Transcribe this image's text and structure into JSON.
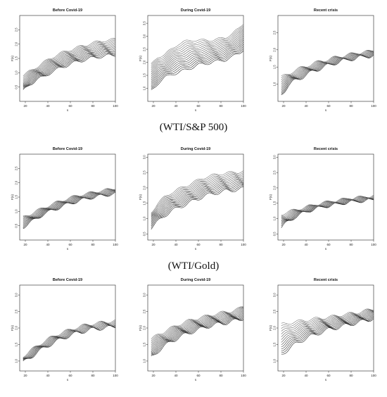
{
  "captions": [
    "(WTI/S&P 500)",
    "(WTI/Gold)"
  ],
  "chart_data": [
    {
      "type": "line",
      "title": "Before Covid-19",
      "xlabel": "s",
      "ylabel": "F(s)",
      "xlim": [
        15,
        100
      ],
      "ylim": [
        0,
        3
      ],
      "xticks": [
        20,
        40,
        60,
        80,
        100
      ],
      "yticks": [
        0.5,
        1.0,
        1.5,
        2.0,
        2.5
      ],
      "series_count": 14,
      "series": [
        {
          "name": "",
          "x": [
            18,
            24,
            30,
            36,
            42,
            48,
            54,
            60,
            66,
            72,
            78,
            84,
            90,
            96,
            100
          ],
          "lower": [
            0.35,
            0.6,
            0.75,
            0.85,
            1.0,
            1.1,
            1.22,
            1.3,
            1.38,
            1.45,
            1.5,
            1.55,
            1.58,
            1.6,
            1.62
          ],
          "upper": [
            0.9,
            1.05,
            1.2,
            1.35,
            1.5,
            1.62,
            1.72,
            1.8,
            1.88,
            1.95,
            2.02,
            2.08,
            2.12,
            2.15,
            2.18
          ]
        }
      ]
    },
    {
      "type": "line",
      "title": "During Covid-19",
      "xlabel": "s",
      "ylabel": "F(s)",
      "xlim": [
        15,
        100
      ],
      "ylim": [
        0.5,
        3.8
      ],
      "xticks": [
        20,
        40,
        60,
        80,
        100
      ],
      "yticks": [
        1.0,
        1.5,
        2.0,
        2.5,
        3.0,
        3.5
      ],
      "series_count": 16,
      "series": [
        {
          "name": "",
          "x": [
            18,
            24,
            30,
            36,
            42,
            48,
            54,
            60,
            66,
            72,
            78,
            84,
            90,
            96,
            100
          ],
          "lower": [
            0.9,
            1.2,
            1.4,
            1.55,
            1.6,
            1.7,
            1.8,
            1.9,
            1.95,
            2.0,
            2.05,
            2.1,
            2.2,
            2.35,
            2.5
          ],
          "upper": [
            1.9,
            2.2,
            2.3,
            2.5,
            2.7,
            2.8,
            2.85,
            2.85,
            2.85,
            2.85,
            2.9,
            2.95,
            3.1,
            3.3,
            3.5
          ]
        }
      ]
    },
    {
      "type": "line",
      "title": "Recent crisis",
      "xlabel": "s",
      "ylabel": "F(s)",
      "xlim": [
        15,
        100
      ],
      "ylim": [
        0.5,
        3.0
      ],
      "xticks": [
        20,
        40,
        60,
        80,
        100
      ],
      "yticks": [
        1.0,
        1.5,
        2.0,
        2.5
      ],
      "series_count": 12,
      "series": [
        {
          "name": "",
          "x": [
            18,
            24,
            30,
            36,
            42,
            48,
            54,
            60,
            66,
            72,
            78,
            84,
            90,
            96,
            100
          ],
          "lower": [
            0.7,
            0.95,
            1.1,
            1.2,
            1.3,
            1.4,
            1.48,
            1.55,
            1.62,
            1.68,
            1.72,
            1.76,
            1.8,
            1.82,
            1.85
          ],
          "upper": [
            1.2,
            1.3,
            1.4,
            1.48,
            1.55,
            1.62,
            1.68,
            1.72,
            1.78,
            1.82,
            1.86,
            1.9,
            1.93,
            1.95,
            1.97
          ]
        }
      ]
    },
    {
      "type": "line",
      "title": "Before Covid-19",
      "xlabel": "s",
      "ylabel": "F(s)",
      "xlim": [
        15,
        100
      ],
      "ylim": [
        0,
        3
      ],
      "xticks": [
        20,
        40,
        60,
        80,
        100
      ],
      "yticks": [
        0.5,
        1.0,
        1.5,
        2.0,
        2.5
      ],
      "series_count": 12,
      "series": [
        {
          "name": "",
          "x": [
            18,
            24,
            30,
            36,
            42,
            48,
            54,
            60,
            66,
            72,
            78,
            84,
            90,
            96,
            100
          ],
          "lower": [
            0.45,
            0.6,
            0.75,
            0.9,
            1.0,
            1.1,
            1.2,
            1.28,
            1.35,
            1.42,
            1.48,
            1.52,
            1.56,
            1.6,
            1.62
          ],
          "upper": [
            0.8,
            0.9,
            1.02,
            1.12,
            1.22,
            1.32,
            1.4,
            1.48,
            1.55,
            1.6,
            1.65,
            1.7,
            1.74,
            1.78,
            1.82
          ]
        }
      ]
    },
    {
      "type": "line",
      "title": "During Covid-19",
      "xlabel": "s",
      "ylabel": "F(s)",
      "xlim": [
        15,
        100
      ],
      "ylim": [
        0.3,
        3.1
      ],
      "xticks": [
        20,
        40,
        60,
        80,
        100
      ],
      "yticks": [
        0.5,
        1.0,
        1.5,
        2.0,
        2.5,
        3.0
      ],
      "series_count": 14,
      "series": [
        {
          "name": "",
          "x": [
            18,
            24,
            30,
            36,
            42,
            48,
            54,
            60,
            66,
            72,
            78,
            84,
            90,
            96,
            100
          ],
          "lower": [
            0.7,
            0.9,
            1.1,
            1.25,
            1.35,
            1.45,
            1.55,
            1.65,
            1.75,
            1.8,
            1.85,
            1.9,
            1.92,
            1.95,
            1.98
          ],
          "upper": [
            1.2,
            1.5,
            1.7,
            1.85,
            1.95,
            2.05,
            2.15,
            2.25,
            2.35,
            2.4,
            2.45,
            2.48,
            2.5,
            2.52,
            2.55
          ]
        }
      ]
    },
    {
      "type": "line",
      "title": "Recent crisis",
      "xlabel": "s",
      "ylabel": "F(s)",
      "xlim": [
        15,
        100
      ],
      "ylim": [
        0.3,
        3.1
      ],
      "xticks": [
        20,
        40,
        60,
        80,
        100
      ],
      "yticks": [
        0.5,
        1.0,
        1.5,
        2.0,
        2.5,
        3.0
      ],
      "series_count": 12,
      "series": [
        {
          "name": "",
          "x": [
            18,
            24,
            30,
            36,
            42,
            48,
            54,
            60,
            66,
            72,
            78,
            84,
            90,
            96,
            100
          ],
          "lower": [
            0.7,
            0.9,
            1.05,
            1.15,
            1.25,
            1.32,
            1.38,
            1.42,
            1.46,
            1.5,
            1.54,
            1.56,
            1.58,
            1.6,
            1.62
          ],
          "upper": [
            1.15,
            1.22,
            1.28,
            1.34,
            1.4,
            1.45,
            1.5,
            1.55,
            1.58,
            1.62,
            1.65,
            1.68,
            1.7,
            1.72,
            1.74
          ]
        }
      ]
    },
    {
      "type": "line",
      "title": "Before Covid-19",
      "xlabel": "s",
      "ylabel": "F(s)",
      "xlim": [
        15,
        100
      ],
      "ylim": [
        0.7,
        3.3
      ],
      "xticks": [
        20,
        40,
        60,
        80,
        100
      ],
      "yticks": [
        1.0,
        1.5,
        2.0,
        2.5,
        3.0
      ],
      "series_count": 10,
      "series": [
        {
          "name": "",
          "x": [
            18,
            24,
            30,
            36,
            42,
            48,
            54,
            60,
            66,
            72,
            78,
            84,
            90,
            96,
            100
          ],
          "lower": [
            0.95,
            1.1,
            1.25,
            1.38,
            1.5,
            1.6,
            1.7,
            1.78,
            1.85,
            1.9,
            1.95,
            1.98,
            2.0,
            2.02,
            2.05
          ],
          "upper": [
            1.15,
            1.3,
            1.45,
            1.58,
            1.7,
            1.8,
            1.88,
            1.95,
            2.02,
            2.08,
            2.12,
            2.15,
            2.18,
            2.2,
            2.22
          ]
        }
      ]
    },
    {
      "type": "line",
      "title": "During Covid-19",
      "xlabel": "s",
      "ylabel": "F(s)",
      "xlim": [
        15,
        100
      ],
      "ylim": [
        0.7,
        3.3
      ],
      "xticks": [
        20,
        40,
        60,
        80,
        100
      ],
      "yticks": [
        1.0,
        1.5,
        2.0,
        2.5,
        3.0
      ],
      "series_count": 14,
      "series": [
        {
          "name": "",
          "x": [
            18,
            24,
            30,
            36,
            42,
            48,
            54,
            60,
            66,
            72,
            78,
            84,
            90,
            96,
            100
          ],
          "lower": [
            1.1,
            1.3,
            1.45,
            1.6,
            1.7,
            1.8,
            1.88,
            1.95,
            2.02,
            2.08,
            2.12,
            2.15,
            2.2,
            2.25,
            2.3
          ],
          "upper": [
            1.65,
            1.8,
            1.9,
            2.0,
            2.1,
            2.18,
            2.25,
            2.3,
            2.35,
            2.4,
            2.45,
            2.48,
            2.52,
            2.58,
            2.65
          ]
        }
      ]
    },
    {
      "type": "line",
      "title": "Recent crisis",
      "xlabel": "s",
      "ylabel": "F(s)",
      "xlim": [
        15,
        100
      ],
      "ylim": [
        0.7,
        3.3
      ],
      "xticks": [
        20,
        40,
        60,
        80,
        100
      ],
      "yticks": [
        1.0,
        1.5,
        2.0,
        2.5,
        3.0
      ],
      "series_count": 14,
      "series": [
        {
          "name": "",
          "x": [
            18,
            24,
            30,
            36,
            42,
            48,
            54,
            60,
            66,
            72,
            78,
            84,
            90,
            96,
            100
          ],
          "lower": [
            1.2,
            1.35,
            1.5,
            1.62,
            1.72,
            1.8,
            1.88,
            1.95,
            2.0,
            2.05,
            2.1,
            2.15,
            2.2,
            2.25,
            2.3
          ],
          "upper": [
            2.1,
            2.15,
            2.18,
            2.22,
            2.25,
            2.28,
            2.3,
            2.33,
            2.36,
            2.4,
            2.43,
            2.46,
            2.5,
            2.55,
            2.58
          ]
        }
      ]
    }
  ]
}
